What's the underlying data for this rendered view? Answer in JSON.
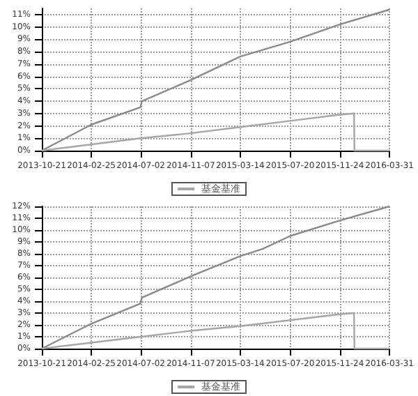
{
  "chart_data": [
    {
      "type": "line",
      "xlim": [
        "2013-10-21",
        "2016-03-31"
      ],
      "xticks": [
        "2013-10-21",
        "2014-02-25",
        "2014-07-02",
        "2014-11-07",
        "2015-03-14",
        "2015-07-20",
        "2015-11-24",
        "2016-03-31"
      ],
      "ylim": [
        0,
        11.5
      ],
      "yticks": [
        {
          "value": 0,
          "label": "0%"
        },
        {
          "value": 1,
          "label": "1%"
        },
        {
          "value": 2,
          "label": "2%"
        },
        {
          "value": 3,
          "label": "3%"
        },
        {
          "value": 4,
          "label": "4%"
        },
        {
          "value": 5,
          "label": "5%"
        },
        {
          "value": 6,
          "label": "6%"
        },
        {
          "value": 7,
          "label": "7%"
        },
        {
          "value": 8,
          "label": "8%"
        },
        {
          "value": 9,
          "label": "9%"
        },
        {
          "value": 10,
          "label": "10%"
        },
        {
          "value": 11,
          "label": "11%"
        }
      ],
      "grid": true,
      "legend": "bottom",
      "marker": "none",
      "line_style": "solid",
      "series": [
        {
          "color": "#8a8a8a",
          "x": [
            "2013-10-21",
            "2014-02-25",
            "2014-07-01",
            "2014-07-05",
            "2014-11-07",
            "2015-03-14",
            "2015-07-20",
            "2015-11-24",
            "2016-03-31"
          ],
          "values": [
            0,
            2.1,
            3.5,
            4.0,
            5.7,
            7.6,
            8.8,
            10.2,
            11.4
          ]
        },
        {
          "name": "基金基准",
          "color": "#a6a6a6",
          "x": [
            "2013-10-21",
            "2014-07-02",
            "2014-11-07",
            "2015-03-14",
            "2015-07-20",
            "2015-11-24",
            "2015-12-31",
            "2016-01-01",
            "2016-03-31"
          ],
          "values": [
            0,
            1.0,
            1.4,
            1.9,
            2.4,
            2.9,
            3.0,
            0,
            0
          ]
        }
      ]
    },
    {
      "type": "line",
      "xlim": [
        "2013-10-21",
        "2016-03-31"
      ],
      "xticks": [
        "2013-10-21",
        "2014-02-25",
        "2014-07-02",
        "2014-11-07",
        "2015-03-14",
        "2015-07-20",
        "2015-11-24",
        "2016-03-31"
      ],
      "ylim": [
        0,
        12
      ],
      "yticks": [
        {
          "value": 0,
          "label": "0%"
        },
        {
          "value": 1,
          "label": "1%"
        },
        {
          "value": 2,
          "label": "2%"
        },
        {
          "value": 3,
          "label": "3%"
        },
        {
          "value": 4,
          "label": "4%"
        },
        {
          "value": 5,
          "label": "5%"
        },
        {
          "value": 6,
          "label": "6%"
        },
        {
          "value": 7,
          "label": "7%"
        },
        {
          "value": 8,
          "label": "8%"
        },
        {
          "value": 9,
          "label": "9%"
        },
        {
          "value": 10,
          "label": "10%"
        },
        {
          "value": 11,
          "label": "11%"
        },
        {
          "value": 12,
          "label": "12%"
        }
      ],
      "grid": true,
      "legend": "bottom",
      "marker": "none",
      "line_style": "solid",
      "series": [
        {
          "color": "#8a8a8a",
          "x": [
            "2013-10-21",
            "2014-02-25",
            "2014-07-01",
            "2014-07-05",
            "2014-11-07",
            "2015-03-14",
            "2015-05-10",
            "2015-07-20",
            "2015-11-24",
            "2016-03-31"
          ],
          "values": [
            0,
            2.1,
            3.8,
            4.3,
            6.1,
            7.8,
            8.4,
            9.5,
            10.8,
            12.0
          ]
        },
        {
          "name": "基金基准",
          "color": "#a6a6a6",
          "x": [
            "2013-10-21",
            "2014-07-02",
            "2014-11-07",
            "2015-03-14",
            "2015-07-20",
            "2015-11-24",
            "2015-12-31",
            "2016-01-01",
            "2016-03-31"
          ],
          "values": [
            0,
            1.0,
            1.5,
            1.9,
            2.4,
            2.9,
            3.0,
            0,
            0
          ]
        }
      ]
    }
  ]
}
